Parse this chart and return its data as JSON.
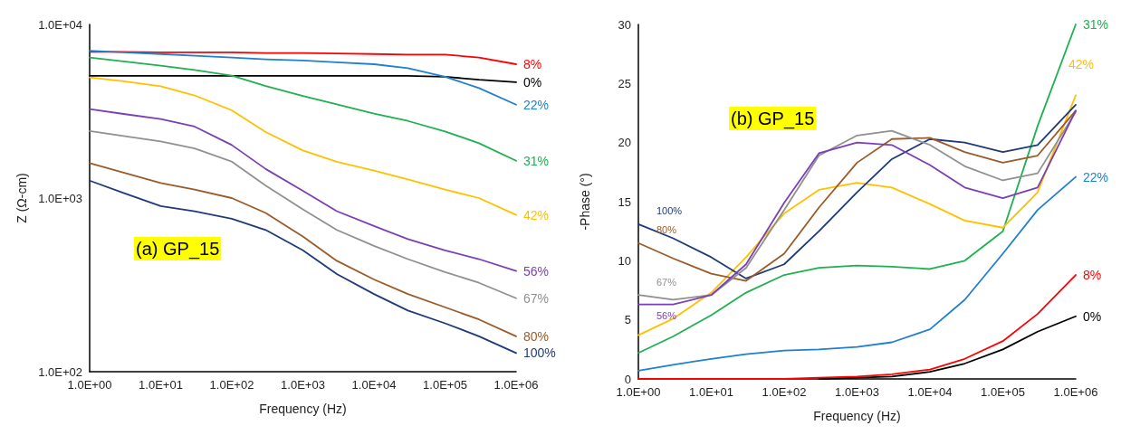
{
  "chart_data": [
    {
      "type": "line",
      "xlabel": "Frequency (Hz)",
      "ylabel": "Z (Ω-cm)",
      "log": "xy",
      "grid": false,
      "annotations": [
        "(a) GP_15"
      ],
      "x": [
        1,
        3,
        10,
        30,
        100,
        300,
        1000,
        3000,
        10000,
        30000,
        100000,
        300000,
        1000000
      ],
      "xlim": [
        1,
        1000000
      ],
      "xticks": [
        {
          "value": 1,
          "label": "1.0E+00"
        },
        {
          "value": 10,
          "label": "1.0E+01"
        },
        {
          "value": 100,
          "label": "1.0E+02"
        },
        {
          "value": 1000,
          "label": "1.0E+03"
        },
        {
          "value": 10000,
          "label": "1.0E+04"
        },
        {
          "value": 100000,
          "label": "1.0E+05"
        },
        {
          "value": 1000000,
          "label": "1.0E+06"
        }
      ],
      "ylim": [
        100,
        10000
      ],
      "yticks": [
        {
          "value": 100,
          "label": "1.0E+02"
        },
        {
          "value": 1000,
          "label": "1.0E+03"
        },
        {
          "value": 10000,
          "label": "1.0E+04"
        }
      ],
      "series": [
        {
          "name": "8%",
          "color": "#ff0000",
          "values": [
            6950,
            6950,
            6900,
            6900,
            6900,
            6850,
            6850,
            6800,
            6750,
            6700,
            6700,
            6450,
            5900
          ]
        },
        {
          "name": "0%",
          "color": "#000000",
          "values": [
            5050,
            5050,
            5050,
            5050,
            5050,
            5050,
            5050,
            5050,
            5050,
            5050,
            5000,
            4800,
            4650
          ]
        },
        {
          "name": "22%",
          "color": "#1f7fd0",
          "values": [
            7050,
            6900,
            6750,
            6600,
            6450,
            6300,
            6200,
            6050,
            5900,
            5600,
            5000,
            4300,
            3450
          ]
        },
        {
          "name": "31%",
          "color": "#1fb050",
          "values": [
            6450,
            6130,
            5780,
            5460,
            5070,
            4420,
            3870,
            3460,
            3060,
            2780,
            2420,
            2070,
            1640
          ]
        },
        {
          "name": "42%",
          "color": "#ffc000",
          "values": [
            4950,
            4700,
            4400,
            3900,
            3200,
            2400,
            1880,
            1620,
            1440,
            1280,
            1120,
            1000,
            800
          ]
        },
        {
          "name": "56%",
          "color": "#7b3fb5",
          "values": [
            3250,
            3050,
            2850,
            2580,
            2020,
            1470,
            1100,
            840,
            690,
            580,
            500,
            445,
            380
          ]
        },
        {
          "name": "67%",
          "color": "#909090",
          "values": [
            2430,
            2280,
            2120,
            1930,
            1620,
            1180,
            860,
            655,
            530,
            445,
            375,
            325,
            265
          ]
        },
        {
          "name": "80%",
          "color": "#9c5a28",
          "values": [
            1590,
            1400,
            1220,
            1120,
            1000,
            820,
            600,
            435,
            340,
            280,
            235,
            200,
            160
          ]
        },
        {
          "name": "100%",
          "color": "#1f3a7a",
          "values": [
            1260,
            1070,
            900,
            840,
            760,
            655,
            500,
            365,
            280,
            225,
            190,
            160,
            128
          ]
        }
      ]
    },
    {
      "type": "line",
      "xlabel": "Frequency (Hz)",
      "ylabel": "-Phase (°)",
      "log": "x",
      "grid": false,
      "annotations": [
        "(b) GP_15"
      ],
      "x": [
        1,
        3,
        10,
        30,
        100,
        300,
        1000,
        3000,
        10000,
        30000,
        100000,
        300000,
        1000000
      ],
      "xlim": [
        1,
        1000000
      ],
      "xticks": [
        {
          "value": 1,
          "label": "1.0E+00"
        },
        {
          "value": 10,
          "label": "1.0E+01"
        },
        {
          "value": 100,
          "label": "1.0E+02"
        },
        {
          "value": 1000,
          "label": "1.0E+03"
        },
        {
          "value": 10000,
          "label": "1.0E+04"
        },
        {
          "value": 100000,
          "label": "1.0E+05"
        },
        {
          "value": 1000000,
          "label": "1.0E+06"
        }
      ],
      "ylim": [
        0,
        30
      ],
      "yticks": [
        0,
        5,
        10,
        15,
        20,
        25,
        30
      ],
      "series": [
        {
          "name": "31%",
          "color": "#1fb050",
          "values": [
            2.2,
            3.6,
            5.4,
            7.3,
            8.8,
            9.4,
            9.6,
            9.5,
            9.3,
            10,
            12.5,
            21.4,
            30
          ]
        },
        {
          "name": "42%",
          "color": "#ffc000",
          "values": [
            3.7,
            5.1,
            7.3,
            10.3,
            14,
            16,
            16.6,
            16.2,
            14.8,
            13.4,
            12.8,
            15.8,
            24
          ]
        },
        {
          "name": "100%",
          "color": "#1f3a7a",
          "values": [
            13.1,
            11.9,
            10.3,
            8.5,
            9.7,
            12.5,
            15.8,
            18.6,
            20.3,
            20,
            19.2,
            19.8,
            23.2
          ]
        },
        {
          "name": "80%",
          "color": "#9c5a28",
          "values": [
            11.5,
            10.2,
            8.9,
            8.3,
            10.6,
            14.5,
            18.3,
            20.3,
            20.4,
            19.2,
            18.3,
            18.9,
            22.7
          ]
        },
        {
          "name": "67%",
          "color": "#909090",
          "values": [
            7.1,
            6.7,
            7.1,
            9.4,
            14.3,
            18.9,
            20.6,
            21,
            19.8,
            18,
            16.8,
            17.4,
            22.6
          ]
        },
        {
          "name": "56%",
          "color": "#7b3fb5",
          "values": [
            6.3,
            6.3,
            7.1,
            9.7,
            14.9,
            19.1,
            20,
            19.8,
            18.1,
            16.2,
            15.3,
            16.2,
            22.7
          ]
        },
        {
          "name": "22%",
          "color": "#1f7fd0",
          "values": [
            0.7,
            1.2,
            1.7,
            2.1,
            2.4,
            2.5,
            2.7,
            3.1,
            4.2,
            6.7,
            10.6,
            14.3,
            17.1
          ]
        },
        {
          "name": "8%",
          "color": "#ff0000",
          "values": [
            0,
            0,
            0,
            0,
            0,
            0.1,
            0.2,
            0.4,
            0.8,
            1.7,
            3.2,
            5.5,
            8.8
          ]
        },
        {
          "name": "0%",
          "color": "#000000",
          "values": [
            null,
            null,
            null,
            null,
            null,
            0,
            0.1,
            0.2,
            0.6,
            1.3,
            2.5,
            4,
            5.3
          ]
        }
      ]
    }
  ]
}
